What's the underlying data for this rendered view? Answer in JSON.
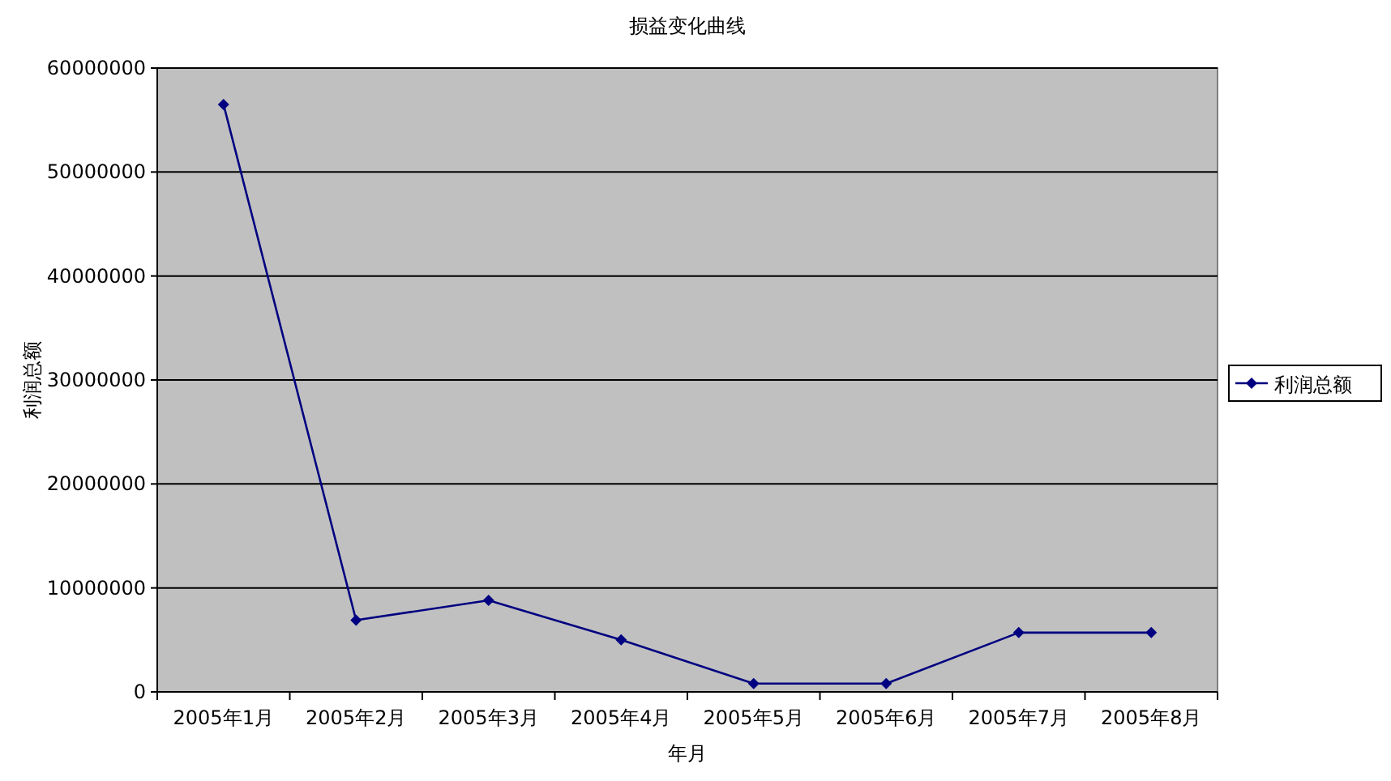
{
  "chart_data": {
    "type": "line",
    "title": "损益变化曲线",
    "xlabel": "年月",
    "ylabel": "利润总额",
    "categories": [
      "2005年1月",
      "2005年2月",
      "2005年3月",
      "2005年4月",
      "2005年5月",
      "2005年6月",
      "2005年7月",
      "2005年8月"
    ],
    "series": [
      {
        "name": "利润总额",
        "color": "#000080",
        "values": [
          56500000,
          6900000,
          8800000,
          5000000,
          800000,
          800000,
          5700000,
          5700000
        ]
      }
    ],
    "ylim": [
      0,
      60000000
    ],
    "yticks": [
      0,
      10000000,
      20000000,
      30000000,
      40000000,
      50000000,
      60000000
    ],
    "grid": "y",
    "legend": "right",
    "marker": "diamond",
    "line_style": "solid"
  }
}
